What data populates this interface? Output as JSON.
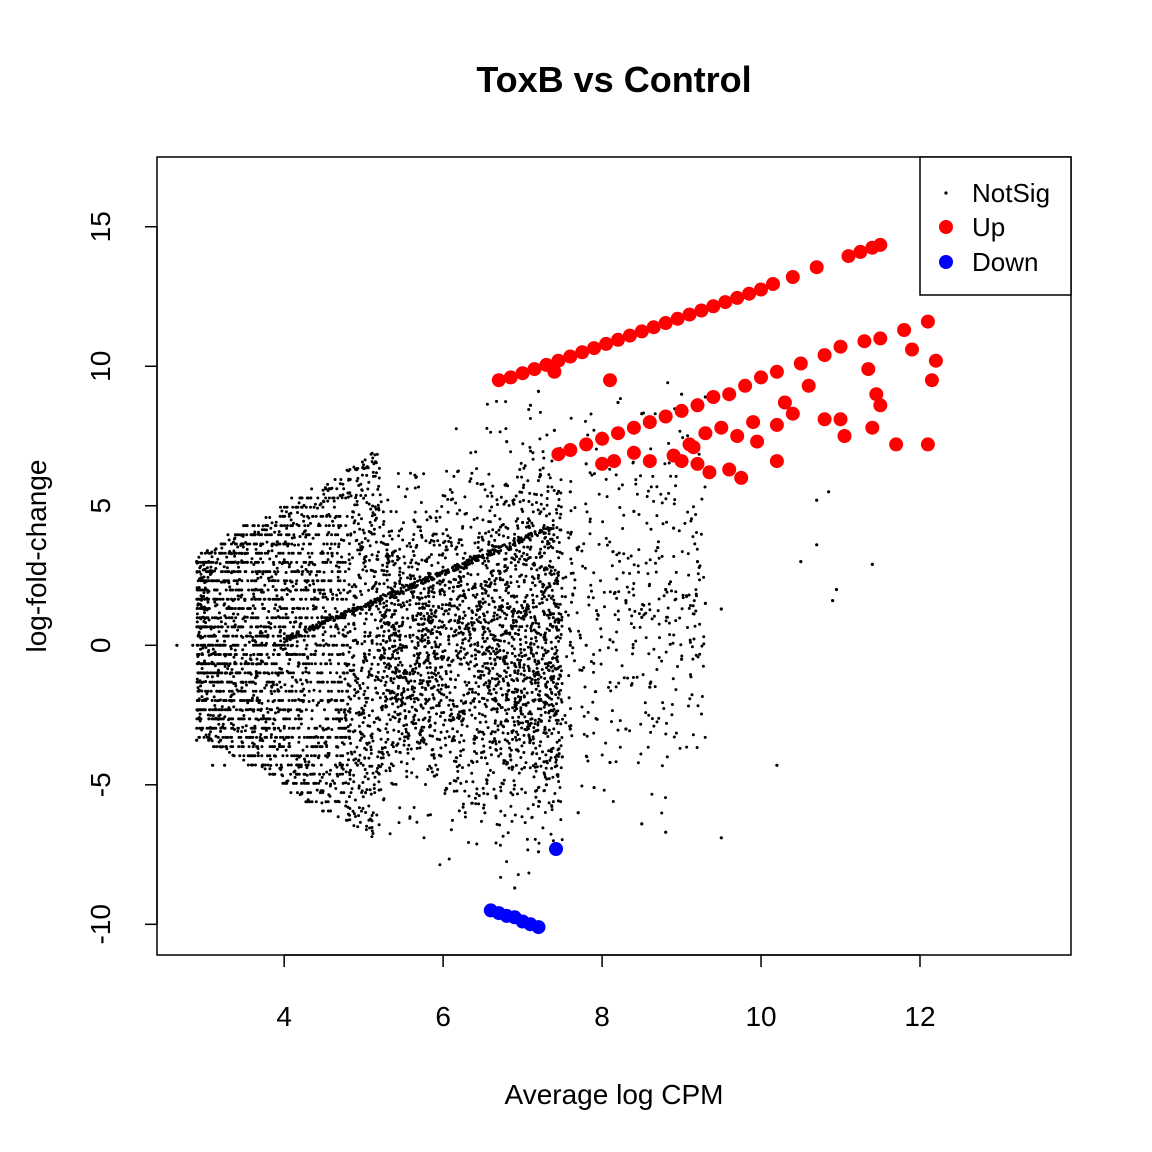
{
  "chart_data": {
    "type": "scatter",
    "title": "ToxB vs Control",
    "xlabel": "Average log CPM",
    "ylabel": "log-fold-change",
    "xlim": [
      2.4,
      13.9
    ],
    "ylim": [
      -11.1,
      17.5
    ],
    "xticks": [
      "4",
      "6",
      "8",
      "10",
      "12"
    ],
    "xtick_values": [
      4,
      6,
      8,
      10,
      12
    ],
    "yticks": [
      "-10",
      "-5",
      "0",
      "5",
      "10",
      "15"
    ],
    "ytick_values": [
      -10,
      -5,
      0,
      5,
      10,
      15
    ],
    "grid": false,
    "legend_position": "top-right",
    "series": [
      {
        "name": "NotSig",
        "color": "#000000",
        "marker": "small-dot",
        "points": [
          [
            2.65,
            0
          ],
          [
            2.85,
            0
          ],
          [
            3.0,
            0
          ],
          [
            3.1,
            0
          ],
          [
            3.2,
            0
          ],
          [
            2.9,
            3
          ],
          [
            3.05,
            3
          ],
          [
            2.9,
            -3.4
          ],
          [
            3.05,
            -3.4
          ],
          [
            3.2,
            -3.4
          ],
          [
            3.1,
            -4.3
          ],
          [
            3.25,
            -4.3
          ],
          [
            7.6,
            0
          ],
          [
            7.8,
            0
          ],
          [
            8.1,
            0.2
          ],
          [
            8.5,
            1.0
          ],
          [
            8.8,
            2.0
          ],
          [
            9.0,
            -0.5
          ],
          [
            8.6,
            -1.5
          ],
          [
            9.3,
            1.5
          ],
          [
            9.5,
            1.3
          ],
          [
            8.3,
            -3.0
          ],
          [
            8.1,
            -4.2
          ],
          [
            7.9,
            -5.1
          ],
          [
            7.7,
            -6.0
          ],
          [
            8.5,
            -6.4
          ],
          [
            8.8,
            -6.7
          ],
          [
            9.5,
            -6.9
          ],
          [
            10.2,
            -4.3
          ],
          [
            10.5,
            3.0
          ],
          [
            10.7,
            3.6
          ],
          [
            10.9,
            1.6
          ],
          [
            10.95,
            2.0
          ],
          [
            10.7,
            5.2
          ],
          [
            10.85,
            5.5
          ],
          [
            11.4,
            2.9
          ],
          [
            9.0,
            9.0
          ],
          [
            9.3,
            8.9
          ],
          [
            8.2,
            8.7
          ],
          [
            8.5,
            8.3
          ],
          [
            8.0,
            7.6
          ],
          [
            7.8,
            6.5
          ],
          [
            7.6,
            5.5
          ],
          [
            8.4,
            4.8
          ],
          [
            8.7,
            3.5
          ],
          [
            9.2,
            3.0
          ],
          [
            7.2,
            9.1
          ],
          [
            7.1,
            8.6
          ],
          [
            7.4,
            7.7
          ],
          [
            6.8,
            7.3
          ],
          [
            7.0,
            4.4
          ],
          [
            7.2,
            2.5
          ],
          [
            7.4,
            1.5
          ],
          [
            7.3,
            -1.5
          ],
          [
            7.1,
            -3.4
          ],
          [
            7.3,
            -5.0
          ],
          [
            7.5,
            -4.0
          ],
          [
            7.6,
            -3.0
          ],
          [
            7.2,
            -7.4
          ],
          [
            6.9,
            -8.7
          ],
          [
            8.3,
            1.6
          ],
          [
            8.9,
            4.2
          ]
        ]
      },
      {
        "name": "Up",
        "color": "#ff0000",
        "marker": "large-dot",
        "points": [
          [
            6.7,
            9.5
          ],
          [
            6.85,
            9.6
          ],
          [
            7.0,
            9.75
          ],
          [
            7.15,
            9.9
          ],
          [
            7.3,
            10.05
          ],
          [
            7.45,
            10.2
          ],
          [
            7.6,
            10.35
          ],
          [
            7.75,
            10.5
          ],
          [
            7.9,
            10.65
          ],
          [
            8.05,
            10.8
          ],
          [
            8.2,
            10.95
          ],
          [
            8.35,
            11.1
          ],
          [
            8.5,
            11.25
          ],
          [
            8.65,
            11.4
          ],
          [
            8.8,
            11.55
          ],
          [
            8.95,
            11.7
          ],
          [
            9.1,
            11.85
          ],
          [
            9.25,
            12.0
          ],
          [
            9.4,
            12.15
          ],
          [
            9.55,
            12.3
          ],
          [
            9.7,
            12.45
          ],
          [
            9.85,
            12.6
          ],
          [
            10.0,
            12.75
          ],
          [
            10.15,
            12.95
          ],
          [
            10.4,
            13.2
          ],
          [
            10.7,
            13.55
          ],
          [
            11.1,
            13.95
          ],
          [
            11.25,
            14.1
          ],
          [
            11.4,
            14.25
          ],
          [
            11.5,
            14.35
          ],
          [
            7.4,
            9.8
          ],
          [
            8.1,
            9.5
          ],
          [
            7.45,
            6.85
          ],
          [
            7.6,
            7.0
          ],
          [
            7.8,
            7.2
          ],
          [
            8.0,
            7.4
          ],
          [
            8.2,
            7.6
          ],
          [
            8.4,
            7.8
          ],
          [
            8.6,
            8.0
          ],
          [
            8.8,
            8.2
          ],
          [
            9.0,
            8.4
          ],
          [
            9.2,
            8.6
          ],
          [
            9.4,
            8.9
          ],
          [
            9.6,
            9.0
          ],
          [
            9.8,
            9.3
          ],
          [
            10.0,
            9.6
          ],
          [
            10.2,
            9.8
          ],
          [
            10.5,
            10.1
          ],
          [
            10.8,
            10.4
          ],
          [
            11.0,
            10.7
          ],
          [
            11.3,
            10.9
          ],
          [
            11.5,
            11.0
          ],
          [
            11.8,
            11.3
          ],
          [
            12.1,
            11.6
          ],
          [
            12.2,
            10.2
          ],
          [
            11.9,
            10.6
          ],
          [
            12.15,
            9.5
          ],
          [
            11.35,
            9.9
          ],
          [
            11.45,
            9.0
          ],
          [
            11.5,
            8.6
          ],
          [
            11.4,
            7.8
          ],
          [
            11.7,
            7.2
          ],
          [
            12.1,
            7.2
          ],
          [
            11.0,
            8.1
          ],
          [
            11.05,
            7.5
          ],
          [
            10.8,
            8.1
          ],
          [
            10.6,
            9.3
          ],
          [
            10.3,
            8.7
          ],
          [
            10.4,
            8.3
          ],
          [
            10.2,
            7.9
          ],
          [
            9.95,
            7.3
          ],
          [
            9.7,
            7.5
          ],
          [
            9.9,
            8.0
          ],
          [
            9.5,
            7.8
          ],
          [
            9.3,
            7.6
          ],
          [
            9.1,
            7.2
          ],
          [
            9.0,
            6.6
          ],
          [
            9.2,
            6.5
          ],
          [
            9.35,
            6.2
          ],
          [
            9.6,
            6.3
          ],
          [
            9.75,
            6.0
          ],
          [
            10.2,
            6.6
          ],
          [
            8.9,
            6.8
          ],
          [
            8.6,
            6.6
          ],
          [
            8.4,
            6.9
          ],
          [
            8.15,
            6.6
          ],
          [
            8.0,
            6.5
          ],
          [
            9.15,
            7.1
          ]
        ]
      },
      {
        "name": "Down",
        "color": "#0000ff",
        "marker": "large-dot",
        "points": [
          [
            6.6,
            -9.5
          ],
          [
            6.7,
            -9.6
          ],
          [
            6.8,
            -9.7
          ],
          [
            6.9,
            -9.75
          ],
          [
            7.0,
            -9.9
          ],
          [
            7.1,
            -10.0
          ],
          [
            7.2,
            -10.1
          ],
          [
            7.42,
            -7.3
          ]
        ]
      }
    ]
  }
}
